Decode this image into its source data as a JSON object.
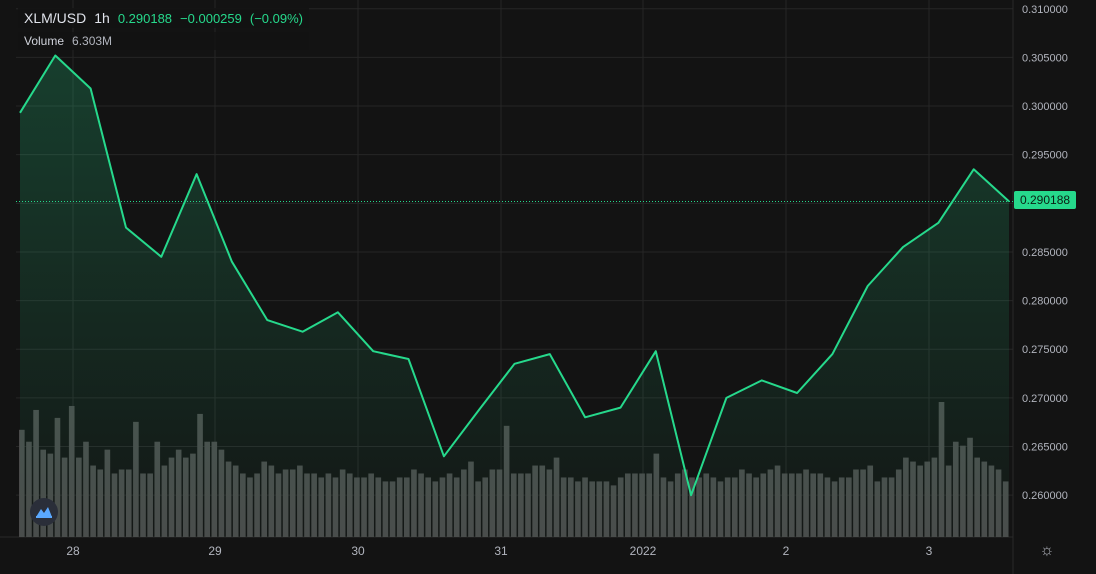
{
  "header": {
    "symbol": "XLM/USD",
    "interval": "1h",
    "last_price": "0.290188",
    "change": "−0.000259",
    "change_pct": "(−0.09%)",
    "volume_label": "Volume",
    "volume_value": "6.303M"
  },
  "last_price_tag": "0.290188",
  "colors": {
    "background": "#131313",
    "grid": "#262626",
    "line": "#26d98c",
    "volume": "#4a4a4a",
    "axis_text": "#b2b5be"
  },
  "icons": {
    "settings": "gear-icon",
    "logo": "tradingview-logo-icon"
  },
  "chart_data": {
    "type": "area",
    "y_axis_ticks": [
      "0.310000",
      "0.305000",
      "0.300000",
      "0.295000",
      "0.290000",
      "0.285000",
      "0.280000",
      "0.275000",
      "0.270000",
      "0.265000",
      "0.260000"
    ],
    "x_axis_ticks": [
      "28",
      "29",
      "30",
      "31",
      "2022",
      "2",
      "3"
    ],
    "ylim": [
      0.2557,
      0.3109
    ],
    "x": [
      "Dec 27 17:00",
      "Dec 27 23:00",
      "Dec 28 05:00",
      "Dec 28 11:00",
      "Dec 28 17:00",
      "Dec 28 23:00",
      "Dec 29 05:00",
      "Dec 29 11:00",
      "Dec 29 17:00",
      "Dec 29 23:00",
      "Dec 30 05:00",
      "Dec 30 11:00",
      "Dec 30 17:00",
      "Dec 30 23:00",
      "Dec 31 05:00",
      "Dec 31 11:00",
      "Dec 31 17:00",
      "Dec 31 23:00",
      "Jan 1 05:00",
      "Jan 1 11:00",
      "Jan 1 17:00",
      "Jan 1 23:00",
      "Jan 2 05:00",
      "Jan 2 11:00",
      "Jan 2 17:00",
      "Jan 2 23:00",
      "Jan 3 05:00",
      "Jan 3 11:00",
      "Jan 3 13:00"
    ],
    "series": [
      {
        "values": [
          0.2993,
          0.3052,
          0.3018,
          0.2875,
          0.2845,
          0.293,
          0.284,
          0.278,
          0.2768,
          0.2788,
          0.2748,
          0.274,
          0.264,
          0.2688,
          0.2735,
          0.2745,
          0.268,
          0.269,
          0.2748,
          0.26,
          0.27,
          0.2718,
          0.2705,
          0.2745,
          0.2815,
          0.2855,
          0.288,
          0.2935,
          0.2902
        ]
      }
    ],
    "volume": {
      "label": "Volume",
      "values": [
        27,
        24,
        32,
        22,
        21,
        30,
        20,
        33,
        20,
        24,
        18,
        17,
        22,
        16,
        17,
        17,
        29,
        16,
        16,
        24,
        18,
        20,
        22,
        20,
        21,
        31,
        24,
        24,
        22,
        19,
        18,
        16,
        15,
        16,
        19,
        18,
        16,
        17,
        17,
        18,
        16,
        16,
        15,
        16,
        15,
        17,
        16,
        15,
        15,
        16,
        15,
        14,
        14,
        15,
        15,
        17,
        16,
        15,
        14,
        15,
        16,
        15,
        17,
        19,
        14,
        15,
        17,
        17,
        28,
        16,
        16,
        16,
        18,
        18,
        17,
        20,
        15,
        15,
        14,
        15,
        14,
        14,
        14,
        13,
        15,
        16,
        16,
        16,
        16,
        21,
        15,
        14,
        16,
        17,
        15,
        15,
        16,
        15,
        14,
        15,
        15,
        17,
        16,
        15,
        16,
        17,
        18,
        16,
        16,
        16,
        17,
        16,
        16,
        15,
        14,
        15,
        15,
        17,
        17,
        18,
        14,
        15,
        15,
        17,
        20,
        19,
        18,
        19,
        20,
        34,
        18,
        24,
        23,
        25,
        20,
        19,
        18,
        17,
        14
      ]
    }
  }
}
